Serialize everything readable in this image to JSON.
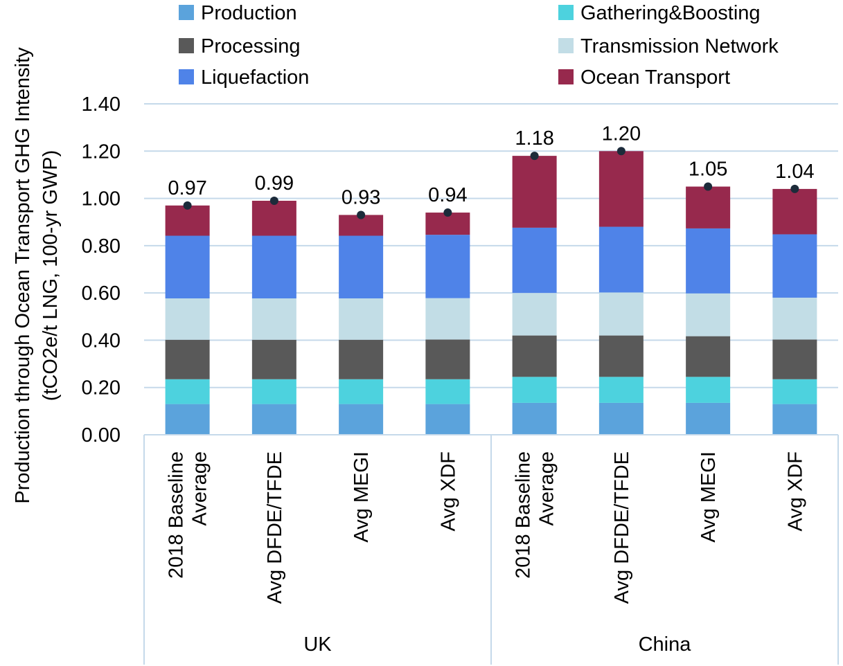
{
  "chart_data": {
    "type": "bar",
    "stacked": true,
    "ylabel": "Production through Ocean Transport GHG Intensity",
    "ylabel_units": "(tCO2e/t LNG, 100-yr GWP)",
    "ylim": [
      0,
      1.4
    ],
    "y_ticks": [
      "0.00",
      "0.20",
      "0.40",
      "0.60",
      "0.80",
      "1.00",
      "1.20",
      "1.40"
    ],
    "grid": true,
    "legend_position": "top",
    "groups": [
      {
        "label": "UK",
        "categories": [
          [
            "2018 Baseline",
            "Average"
          ],
          [
            "Avg DFDE/TFDE"
          ],
          [
            "Avg MEGI"
          ],
          [
            "Avg XDF"
          ]
        ]
      },
      {
        "label": "China",
        "categories": [
          [
            "2018 Baseline",
            "Average"
          ],
          [
            "Avg DFDE/TFDE"
          ],
          [
            "Avg MEGI"
          ],
          [
            "Avg XDF"
          ]
        ]
      }
    ],
    "series": [
      {
        "name": "Production",
        "color": "#5ba3dc",
        "values": [
          0.13,
          0.13,
          0.13,
          0.13,
          0.135,
          0.135,
          0.135,
          0.13
        ]
      },
      {
        "name": "Gathering&Boosting",
        "color": "#4dd2de",
        "values": [
          0.105,
          0.105,
          0.105,
          0.105,
          0.11,
          0.11,
          0.11,
          0.105
        ]
      },
      {
        "name": "Processing",
        "color": "#595959",
        "values": [
          0.167,
          0.167,
          0.167,
          0.168,
          0.175,
          0.175,
          0.172,
          0.168
        ]
      },
      {
        "name": "Transmission Network",
        "color": "#c2dde6",
        "values": [
          0.175,
          0.175,
          0.175,
          0.175,
          0.18,
          0.182,
          0.181,
          0.177
        ]
      },
      {
        "name": "Liquefaction",
        "color": "#4f83e8",
        "values": [
          0.265,
          0.265,
          0.265,
          0.268,
          0.276,
          0.278,
          0.275,
          0.268
        ]
      },
      {
        "name": "Ocean Transport",
        "color": "#97294d",
        "values": [
          0.128,
          0.148,
          0.088,
          0.094,
          0.304,
          0.32,
          0.177,
          0.192
        ]
      }
    ],
    "totals": [
      "0.97",
      "0.99",
      "0.93",
      "0.94",
      "1.18",
      "1.20",
      "1.05",
      "1.04"
    ],
    "total_values": [
      0.97,
      0.99,
      0.93,
      0.94,
      1.18,
      1.2,
      1.05,
      1.04
    ],
    "marker_color": "#1c2b3a",
    "grid_color": "#c5d9ea",
    "axis_color": "#c5d9ea"
  }
}
